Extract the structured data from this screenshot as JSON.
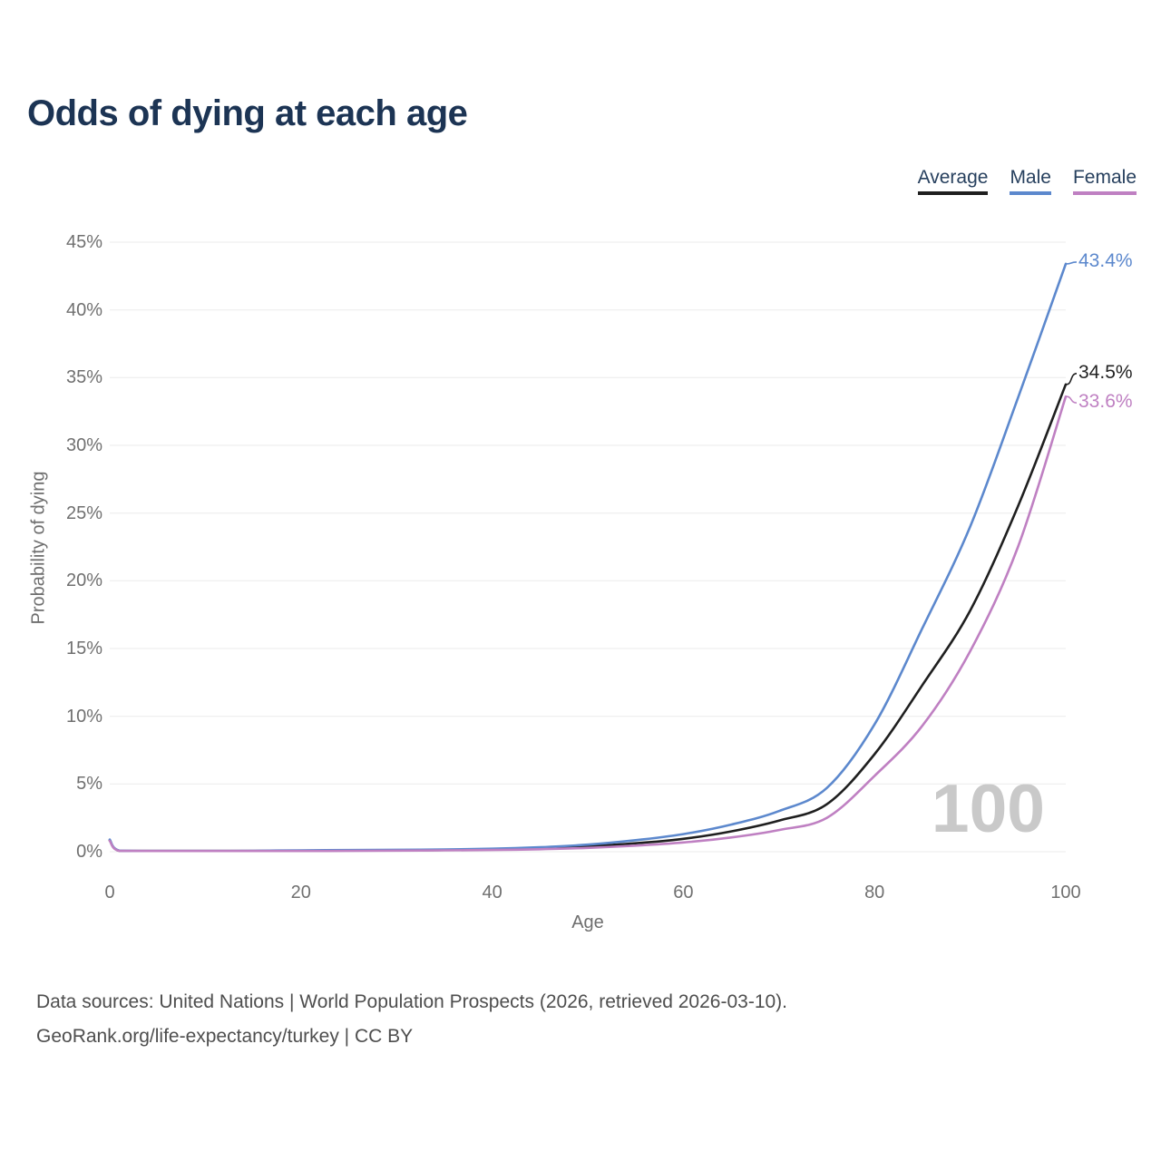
{
  "page": {
    "title": "Odds of dying at each age",
    "footer": {
      "line1": "Data sources: United Nations | World Population Prospects (2026, retrieved 2026-03-10).",
      "line2": "GeoRank.org/life-expectancy/turkey | CC BY"
    }
  },
  "chart_data": {
    "type": "line",
    "title": "Odds of dying at each age",
    "xlabel": "Age",
    "ylabel": "Probability of dying",
    "xlim": [
      0,
      100
    ],
    "ylim_percent": [
      0,
      45
    ],
    "x_ticks": [
      0,
      20,
      40,
      60,
      80,
      100
    ],
    "y_ticks_percent": [
      0,
      5,
      10,
      15,
      20,
      25,
      30,
      35,
      40,
      45
    ],
    "grid": "horizontal",
    "legend_position": "top-right",
    "watermark": "100",
    "ages": [
      0,
      1,
      5,
      10,
      15,
      20,
      25,
      30,
      35,
      40,
      45,
      50,
      55,
      60,
      65,
      70,
      75,
      80,
      85,
      90,
      95,
      100
    ],
    "series": [
      {
        "name": "Average",
        "color": "#1f1f1f",
        "label_color": "#222222",
        "end_label": "34.5%",
        "end_value_percent": 34.5,
        "values_percent": [
          0.85,
          0.07,
          0.03,
          0.03,
          0.05,
          0.07,
          0.09,
          0.1,
          0.12,
          0.17,
          0.25,
          0.4,
          0.62,
          0.95,
          1.5,
          2.3,
          3.5,
          7.2,
          12.3,
          17.8,
          25.5,
          34.5
        ]
      },
      {
        "name": "Male",
        "color": "#5c88cd",
        "label_color": "#5c88cd",
        "end_label": "43.4%",
        "end_value_percent": 43.4,
        "values_percent": [
          0.9,
          0.08,
          0.04,
          0.04,
          0.07,
          0.1,
          0.12,
          0.14,
          0.17,
          0.22,
          0.33,
          0.52,
          0.85,
          1.3,
          2.0,
          3.0,
          4.7,
          9.4,
          16.5,
          24.0,
          33.5,
          43.4
        ]
      },
      {
        "name": "Female",
        "color": "#bf80c2",
        "label_color": "#bf80c2",
        "end_label": "33.6%",
        "end_value_percent": 33.6,
        "values_percent": [
          0.8,
          0.06,
          0.03,
          0.03,
          0.04,
          0.05,
          0.06,
          0.08,
          0.1,
          0.13,
          0.18,
          0.28,
          0.45,
          0.68,
          1.05,
          1.6,
          2.5,
          5.6,
          9.3,
          14.8,
          22.5,
          33.6
        ]
      }
    ]
  }
}
